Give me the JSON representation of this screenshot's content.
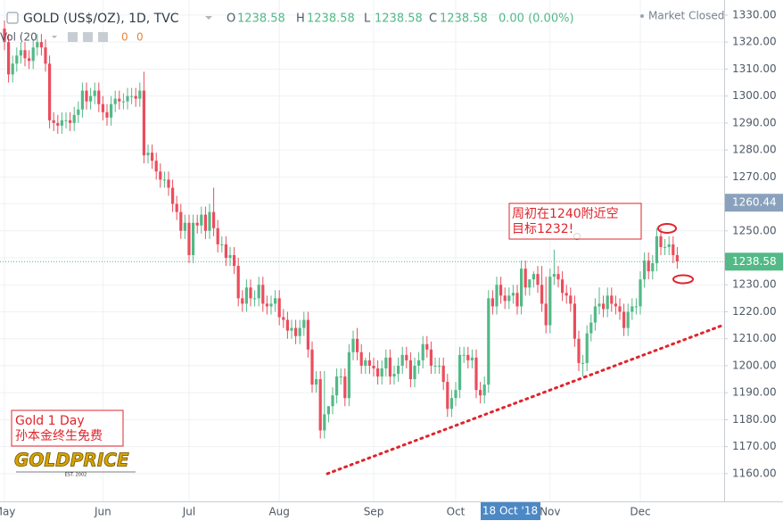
{
  "chart_data": {
    "type": "candlestick",
    "header": {
      "symbol": "GOLD (US$/OZ), 1D, TVC",
      "ohlc": [
        {
          "label": "O",
          "value": 1238.58
        },
        {
          "label": "H",
          "value": 1238.58
        },
        {
          "label": "L",
          "value": 1238.58
        },
        {
          "label": "C",
          "value": 1238.58
        }
      ],
      "change": "0.00 (0.00%)",
      "status": "Market Closed",
      "volume_label": "Vol (20",
      "volume_values": [
        0,
        0
      ]
    },
    "annotations": {
      "trade_note": [
        "周初在1240附近空",
        "目标1232!"
      ],
      "corner_note": [
        "Gold 1 Day",
        "孙本金终生免费"
      ],
      "logo": "GOLDPRICE",
      "logo_sub": "EST. 2002"
    },
    "crosshair": {
      "price": {
        "value": 1260.44,
        "label": "1260.44"
      },
      "date": "18 Oct '18"
    },
    "last_price": {
      "value": 1238.58,
      "label": "1238.58"
    },
    "up_color": "#53b987",
    "down_color": "#eb4d5c",
    "grid": true,
    "ylim": [
      1149.7,
      1335.6
    ],
    "yticks": [
      {
        "value": 1160,
        "label": "1160.00"
      },
      {
        "value": 1170,
        "label": "1170.00"
      },
      {
        "value": 1180,
        "label": "1180.00"
      },
      {
        "value": 1190,
        "label": "1190.00"
      },
      {
        "value": 1200,
        "label": "1200.00"
      },
      {
        "value": 1210,
        "label": "1210.00"
      },
      {
        "value": 1220,
        "label": "1220.00"
      },
      {
        "value": 1230,
        "label": "1230.00"
      },
      {
        "value": 1240,
        "label": "1240.00"
      },
      {
        "value": 1250,
        "label": "1250.00"
      },
      {
        "value": 1260,
        "label": "1260.00"
      },
      {
        "value": 1270,
        "label": "1270.00"
      },
      {
        "value": 1280,
        "label": "1280.00"
      },
      {
        "value": 1290,
        "label": "1290.00"
      },
      {
        "value": 1300,
        "label": "1300.00"
      },
      {
        "value": 1310,
        "label": "1310.00"
      },
      {
        "value": 1320,
        "label": "1320.00"
      },
      {
        "value": 1330,
        "label": "1330.00"
      }
    ],
    "categories": [
      "May",
      null,
      null,
      null,
      null,
      null,
      null,
      null,
      null,
      null,
      null,
      null,
      null,
      null,
      null,
      null,
      null,
      null,
      null,
      null,
      null,
      null,
      null,
      null,
      "Jun",
      null,
      null,
      null,
      null,
      null,
      null,
      null,
      null,
      null,
      null,
      null,
      null,
      null,
      null,
      null,
      null,
      null,
      null,
      null,
      null,
      "Jul",
      null,
      null,
      null,
      null,
      null,
      null,
      null,
      null,
      null,
      null,
      null,
      null,
      null,
      null,
      null,
      null,
      null,
      null,
      null,
      null,
      null,
      "Aug",
      null,
      null,
      null,
      null,
      null,
      null,
      null,
      null,
      null,
      null,
      null,
      null,
      null,
      null,
      null,
      null,
      null,
      null,
      null,
      null,
      null,
      null,
      "Sep",
      null,
      null,
      null,
      null,
      null,
      null,
      null,
      null,
      null,
      null,
      null,
      null,
      null,
      null,
      null,
      null,
      null,
      null,
      null,
      "Oct",
      null,
      null,
      null,
      null,
      null,
      null,
      null,
      null,
      null,
      null,
      null,
      null,
      null,
      null,
      null,
      null,
      null,
      null,
      null,
      null,
      null,
      null,
      "Nov",
      null,
      null,
      null,
      null,
      null,
      null,
      null,
      null,
      null,
      null,
      null,
      null,
      null,
      null,
      null,
      null,
      null,
      null,
      null,
      null,
      null,
      "Dec",
      null,
      null,
      null,
      null,
      null,
      null,
      null,
      null,
      null
    ],
    "open": [
      1325,
      1320,
      1308,
      1312,
      1315,
      1317,
      1314,
      1313,
      1318,
      1320,
      1318,
      1312,
      1291,
      1290,
      1289,
      1291,
      1291,
      1290,
      1293,
      1295,
      1302,
      1298,
      1300,
      1302,
      1297,
      1294,
      1292,
      1297,
      1299,
      1298,
      1298,
      1300,
      1300,
      1299,
      1302,
      1278,
      1279,
      1276,
      1272,
      1269,
      1269,
      1266,
      1260,
      1257,
      1250,
      1253,
      1241,
      1253,
      1252,
      1256,
      1250,
      1257,
      1251,
      1245,
      1245,
      1240,
      1241,
      1237,
      1225,
      1223,
      1229,
      1225,
      1225,
      1230,
      1223,
      1222,
      1223,
      1225,
      1218,
      1217,
      1213,
      1214,
      1211,
      1214,
      1217,
      1206,
      1193,
      1195,
      1176,
      1182,
      1185,
      1189,
      1196,
      1196,
      1188,
      1205,
      1210,
      1205,
      1200,
      1202,
      1200,
      1199,
      1196,
      1199,
      1203,
      1196,
      1197,
      1200,
      1204,
      1202,
      1195,
      1200,
      1202,
      1208,
      1206,
      1200,
      1200,
      1200,
      1194,
      1184,
      1188,
      1191,
      1204,
      1204,
      1202,
      1203,
      1191,
      1189,
      1193,
      1225,
      1222,
      1230,
      1226,
      1224,
      1226,
      1227,
      1222,
      1236,
      1229,
      1232,
      1234,
      1230,
      1223,
      1215,
      1233,
      1234,
      1232,
      1227,
      1226,
      1223,
      1210,
      1201,
      1201,
      1212,
      1216,
      1222,
      1223,
      1221,
      1226,
      1223,
      1222,
      1220,
      1214,
      1220,
      1222,
      1222,
      1232,
      1239,
      1235,
      1238,
      1248,
      1244,
      1244,
      1245,
      1241
    ],
    "high": [
      1328,
      1323,
      1315,
      1318,
      1320,
      1320,
      1317,
      1321,
      1323,
      1323,
      1321,
      1315,
      1294,
      1293,
      1294,
      1294,
      1294,
      1296,
      1298,
      1305,
      1305,
      1303,
      1305,
      1305,
      1300,
      1297,
      1300,
      1302,
      1302,
      1301,
      1303,
      1303,
      1303,
      1305,
      1309,
      1282,
      1282,
      1279,
      1275,
      1272,
      1272,
      1269,
      1263,
      1260,
      1256,
      1256,
      1256,
      1256,
      1259,
      1259,
      1260,
      1266,
      1254,
      1248,
      1248,
      1244,
      1244,
      1240,
      1228,
      1232,
      1232,
      1228,
      1233,
      1233,
      1226,
      1226,
      1228,
      1228,
      1221,
      1220,
      1217,
      1217,
      1217,
      1220,
      1220,
      1209,
      1198,
      1198,
      1198,
      1185,
      1192,
      1199,
      1199,
      1199,
      1208,
      1213,
      1214,
      1208,
      1203,
      1205,
      1203,
      1202,
      1202,
      1206,
      1206,
      1200,
      1203,
      1207,
      1207,
      1205,
      1203,
      1205,
      1211,
      1211,
      1209,
      1203,
      1203,
      1203,
      1197,
      1191,
      1194,
      1207,
      1207,
      1207,
      1206,
      1206,
      1194,
      1196,
      1228,
      1228,
      1233,
      1233,
      1229,
      1229,
      1230,
      1230,
      1239,
      1239,
      1232,
      1235,
      1237,
      1237,
      1233,
      1236,
      1243,
      1237,
      1235,
      1230,
      1229,
      1226,
      1213,
      1204,
      1215,
      1219,
      1225,
      1229,
      1226,
      1229,
      1229,
      1226,
      1225,
      1223,
      1223,
      1225,
      1225,
      1235,
      1242,
      1242,
      1241,
      1251,
      1251,
      1247,
      1248,
      1248,
      1244
    ],
    "low": [
      1317,
      1305,
      1305,
      1309,
      1312,
      1311,
      1310,
      1310,
      1315,
      1315,
      1309,
      1288,
      1287,
      1286,
      1286,
      1288,
      1287,
      1287,
      1290,
      1292,
      1295,
      1295,
      1297,
      1294,
      1291,
      1289,
      1289,
      1294,
      1295,
      1295,
      1295,
      1297,
      1296,
      1296,
      1275,
      1275,
      1273,
      1269,
      1266,
      1266,
      1263,
      1257,
      1254,
      1247,
      1247,
      1238,
      1238,
      1249,
      1249,
      1247,
      1247,
      1248,
      1242,
      1242,
      1237,
      1237,
      1234,
      1222,
      1220,
      1220,
      1222,
      1222,
      1222,
      1220,
      1219,
      1219,
      1220,
      1215,
      1214,
      1210,
      1210,
      1208,
      1208,
      1211,
      1203,
      1190,
      1190,
      1173,
      1173,
      1179,
      1182,
      1186,
      1193,
      1185,
      1185,
      1202,
      1202,
      1197,
      1197,
      1197,
      1196,
      1193,
      1193,
      1196,
      1193,
      1193,
      1194,
      1197,
      1199,
      1192,
      1192,
      1197,
      1199,
      1203,
      1197,
      1197,
      1197,
      1191,
      1181,
      1181,
      1185,
      1188,
      1201,
      1199,
      1199,
      1188,
      1186,
      1186,
      1190,
      1219,
      1219,
      1223,
      1221,
      1221,
      1223,
      1219,
      1219,
      1226,
      1226,
      1229,
      1227,
      1220,
      1212,
      1212,
      1230,
      1229,
      1224,
      1223,
      1220,
      1207,
      1198,
      1196,
      1198,
      1209,
      1213,
      1219,
      1218,
      1218,
      1220,
      1219,
      1217,
      1211,
      1211,
      1217,
      1219,
      1219,
      1229,
      1232,
      1232,
      1235,
      1241,
      1241,
      1241,
      1238,
      1236
    ],
    "close": [
      1320,
      1308,
      1312,
      1315,
      1317,
      1314,
      1313,
      1318,
      1320,
      1318,
      1312,
      1291,
      1290,
      1289,
      1291,
      1291,
      1290,
      1293,
      1295,
      1302,
      1298,
      1300,
      1302,
      1297,
      1294,
      1292,
      1297,
      1299,
      1298,
      1298,
      1300,
      1300,
      1299,
      1302,
      1278,
      1279,
      1276,
      1272,
      1269,
      1269,
      1266,
      1260,
      1257,
      1250,
      1253,
      1241,
      1253,
      1252,
      1256,
      1250,
      1257,
      1251,
      1245,
      1245,
      1240,
      1241,
      1237,
      1225,
      1223,
      1229,
      1225,
      1225,
      1230,
      1223,
      1222,
      1223,
      1225,
      1218,
      1217,
      1213,
      1214,
      1211,
      1214,
      1217,
      1206,
      1193,
      1195,
      1176,
      1182,
      1185,
      1189,
      1196,
      1196,
      1188,
      1205,
      1210,
      1205,
      1200,
      1202,
      1200,
      1199,
      1196,
      1199,
      1203,
      1196,
      1197,
      1200,
      1204,
      1202,
      1195,
      1200,
      1202,
      1208,
      1206,
      1200,
      1200,
      1200,
      1194,
      1184,
      1188,
      1191,
      1204,
      1204,
      1202,
      1203,
      1191,
      1189,
      1193,
      1225,
      1222,
      1230,
      1226,
      1224,
      1226,
      1227,
      1222,
      1236,
      1229,
      1232,
      1234,
      1230,
      1223,
      1215,
      1233,
      1234,
      1232,
      1227,
      1226,
      1223,
      1210,
      1201,
      1201,
      1212,
      1216,
      1222,
      1223,
      1221,
      1226,
      1223,
      1222,
      1220,
      1214,
      1220,
      1222,
      1222,
      1232,
      1239,
      1235,
      1238,
      1248,
      1244,
      1244,
      1245,
      1241,
      1238.58
    ]
  }
}
